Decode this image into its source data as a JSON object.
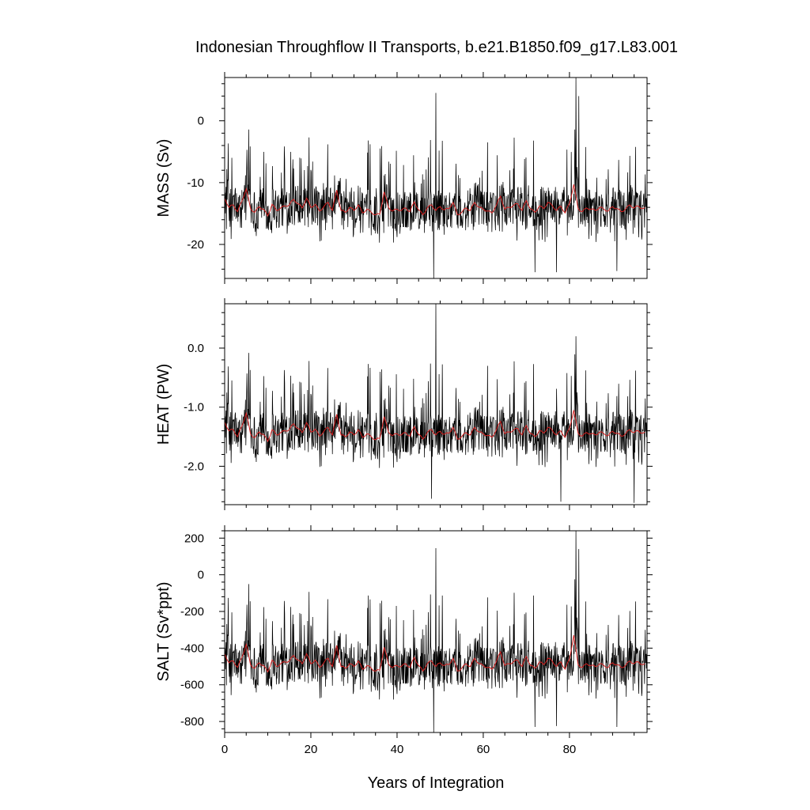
{
  "title": "Indonesian Throughflow II Transports, b.e21.B1850.f09_g17.L83.001",
  "xlabel": "Years of Integration",
  "colors": {
    "raw": "#000000",
    "smooth": "#d62020",
    "frame": "#000000"
  },
  "chart_data": [
    {
      "type": "line",
      "id": "mass",
      "ylabel": "MASS (Sv)",
      "xlim": [
        0,
        98
      ],
      "ylim": [
        -25.5,
        7
      ],
      "xticks": [
        0,
        20,
        40,
        60,
        80
      ],
      "xtick_labels": [
        "0",
        "20",
        "40",
        "60",
        "80"
      ],
      "yticks": [
        0,
        -10,
        -20
      ],
      "ytick_labels": [
        "0",
        "-10",
        "-20"
      ],
      "series": [
        {
          "name": "monthly",
          "mean": -14.2,
          "spread": 3.2,
          "peaks": [
            [
              49,
              4.5
            ],
            [
              81.5,
              7
            ],
            [
              82.2,
              4
            ]
          ],
          "troughs": [
            [
              48.5,
              -25.5
            ],
            [
              72,
              -24.5
            ],
            [
              77,
              -24.5
            ],
            [
              91,
              -24.3
            ]
          ]
        },
        {
          "name": "annual-mean",
          "values": [
            -12.5,
            -14.0,
            -13.6,
            -14.7,
            -13.0,
            -11.0,
            -14.2,
            -14.8,
            -13.9,
            -14.3,
            -15.4,
            -13.5,
            -14.5,
            -14.1,
            -13.8,
            -13.6,
            -12.7,
            -13.4,
            -14.1,
            -12.5,
            -14.0,
            -13.5,
            -14.6,
            -13.9,
            -13.2,
            -14.5,
            -11.2,
            -14.5,
            -14.8,
            -14.0,
            -14.5,
            -13.6,
            -14.9,
            -14.3,
            -14.8,
            -15.2,
            -15.1,
            -11.5,
            -14.0,
            -14.6,
            -14.3,
            -14.5,
            -14.1,
            -14.7,
            -13.1,
            -14.4,
            -15.2,
            -14.1,
            -13.6,
            -14.5,
            -13.9,
            -14.4,
            -14.2,
            -13.2,
            -15.2,
            -14.8,
            -14.1,
            -14.5,
            -13.2,
            -14.0,
            -14.3,
            -14.6,
            -14.9,
            -13.7,
            -12.2,
            -14.3,
            -14.0,
            -13.7,
            -13.4,
            -14.5,
            -12.9,
            -14.3,
            -14.8,
            -13.8,
            -14.2,
            -13.2,
            -13.7,
            -14.5,
            -13.8,
            -14.9,
            -13.4,
            -10.3,
            -14.2,
            -14.7,
            -14.1,
            -14.3,
            -14.5,
            -14.0,
            -14.3,
            -14.6,
            -13.9,
            -14.2,
            -14.7,
            -14.3,
            -13.6,
            -14.1,
            -13.8,
            -14.2
          ]
        }
      ]
    },
    {
      "type": "line",
      "id": "heat",
      "ylabel": "HEAT (PW)",
      "xlim": [
        0,
        98
      ],
      "ylim": [
        -2.65,
        0.75
      ],
      "xticks": [
        0,
        20,
        40,
        60,
        80
      ],
      "xtick_labels": [
        "0",
        "20",
        "40",
        "60",
        "80"
      ],
      "yticks": [
        0.0,
        -1.0,
        -2.0
      ],
      "ytick_labels": [
        "0.0",
        "-1.0",
        "-2.0"
      ],
      "series": [
        {
          "name": "monthly",
          "mean": -1.45,
          "spread": 0.34,
          "peaks": [
            [
              49,
              0.75
            ],
            [
              81.5,
              0.2
            ]
          ],
          "troughs": [
            [
              48,
              -2.55
            ],
            [
              78,
              -2.6
            ],
            [
              95,
              -2.62
            ]
          ]
        },
        {
          "name": "annual-mean",
          "values": [
            -1.25,
            -1.4,
            -1.38,
            -1.5,
            -1.32,
            -1.1,
            -1.45,
            -1.52,
            -1.42,
            -1.46,
            -1.58,
            -1.38,
            -1.47,
            -1.43,
            -1.4,
            -1.38,
            -1.28,
            -1.36,
            -1.43,
            -1.26,
            -1.42,
            -1.37,
            -1.49,
            -1.41,
            -1.34,
            -1.47,
            -1.12,
            -1.47,
            -1.5,
            -1.42,
            -1.47,
            -1.38,
            -1.51,
            -1.45,
            -1.5,
            -1.55,
            -1.53,
            -1.16,
            -1.42,
            -1.48,
            -1.45,
            -1.47,
            -1.43,
            -1.49,
            -1.33,
            -1.46,
            -1.54,
            -1.43,
            -1.38,
            -1.47,
            -1.41,
            -1.46,
            -1.44,
            -1.34,
            -1.54,
            -1.5,
            -1.43,
            -1.47,
            -1.34,
            -1.42,
            -1.45,
            -1.48,
            -1.51,
            -1.39,
            -1.24,
            -1.45,
            -1.42,
            -1.39,
            -1.36,
            -1.47,
            -1.31,
            -1.45,
            -1.5,
            -1.4,
            -1.44,
            -1.34,
            -1.39,
            -1.47,
            -1.4,
            -1.51,
            -1.36,
            -1.05,
            -1.44,
            -1.49,
            -1.43,
            -1.45,
            -1.47,
            -1.42,
            -1.45,
            -1.48,
            -1.41,
            -1.44,
            -1.49,
            -1.45,
            -1.38,
            -1.43,
            -1.4,
            -1.44
          ]
        }
      ]
    },
    {
      "type": "line",
      "id": "salt",
      "ylabel": "SALT (Sv*ppt)",
      "xlim": [
        0,
        98
      ],
      "ylim": [
        -860,
        240
      ],
      "xticks": [
        0,
        20,
        40,
        60,
        80
      ],
      "xtick_labels": [
        "0",
        "20",
        "40",
        "60",
        "80"
      ],
      "yticks": [
        200,
        0,
        -200,
        -400,
        -600,
        -800
      ],
      "ytick_labels": [
        "200",
        "0",
        "-200",
        "-400",
        "-600",
        "-800"
      ],
      "series": [
        {
          "name": "monthly",
          "mean": -490,
          "spread": 110,
          "peaks": [
            [
              49,
              145
            ],
            [
              81.5,
              240
            ],
            [
              82.2,
              140
            ]
          ],
          "troughs": [
            [
              48.5,
              -860
            ],
            [
              72,
              -830
            ],
            [
              77,
              -825
            ],
            [
              91,
              -830
            ]
          ]
        },
        {
          "name": "annual-mean",
          "values": [
            -430,
            -480,
            -470,
            -505,
            -450,
            -380,
            -490,
            -510,
            -480,
            -495,
            -530,
            -465,
            -500,
            -485,
            -475,
            -470,
            -440,
            -465,
            -485,
            -430,
            -485,
            -465,
            -505,
            -480,
            -455,
            -500,
            -385,
            -500,
            -510,
            -485,
            -500,
            -470,
            -515,
            -495,
            -510,
            -525,
            -520,
            -395,
            -485,
            -505,
            -495,
            -500,
            -485,
            -505,
            -450,
            -495,
            -525,
            -485,
            -470,
            -500,
            -480,
            -495,
            -490,
            -455,
            -525,
            -510,
            -485,
            -500,
            -455,
            -485,
            -495,
            -505,
            -515,
            -475,
            -420,
            -495,
            -485,
            -475,
            -465,
            -500,
            -445,
            -495,
            -510,
            -475,
            -490,
            -455,
            -470,
            -500,
            -475,
            -515,
            -460,
            -330,
            -490,
            -505,
            -485,
            -495,
            -500,
            -485,
            -495,
            -505,
            -480,
            -490,
            -505,
            -495,
            -470,
            -485,
            -475,
            -490
          ]
        }
      ]
    }
  ]
}
